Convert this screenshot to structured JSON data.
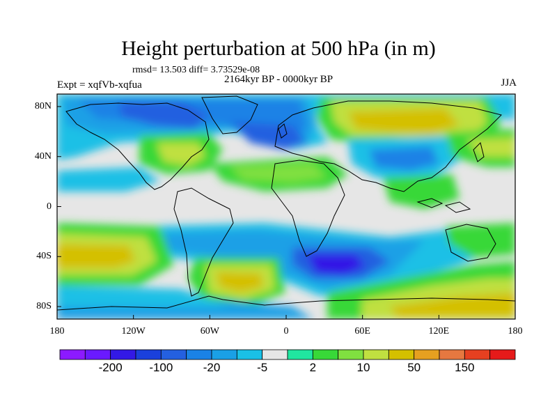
{
  "title": "Height perturbation at 500 hPa (in m)",
  "stats_line": "rmsd= 13.503 diff= 3.73529e-08",
  "experiment": "Expt = xqfVb-xqfua",
  "period": "2164kyr BP - 0000kyr BP",
  "season": "JJA",
  "map": {
    "projection": "cylindrical equidistant",
    "lon_range": [
      -180,
      180
    ],
    "lat_range": [
      -90,
      90
    ],
    "lat_ticks": [
      {
        "value": 80,
        "label": "80N"
      },
      {
        "value": 40,
        "label": "40N"
      },
      {
        "value": 0,
        "label": "0"
      },
      {
        "value": -40,
        "label": "40S"
      },
      {
        "value": -80,
        "label": "80S"
      }
    ],
    "lon_ticks": [
      {
        "value": -180,
        "label": "180"
      },
      {
        "value": -120,
        "label": "120W"
      },
      {
        "value": -60,
        "label": "60W"
      },
      {
        "value": 0,
        "label": "0"
      },
      {
        "value": 60,
        "label": "60E"
      },
      {
        "value": 120,
        "label": "120E"
      },
      {
        "value": 180,
        "label": "180"
      }
    ],
    "background_color": "#e6e6e6",
    "coastline_color": "#000000"
  },
  "colorbar": {
    "colors": [
      "#8c1aff",
      "#6a1aff",
      "#3319e6",
      "#1a40dc",
      "#2460e0",
      "#1a82e6",
      "#1aa0e6",
      "#1ac0e6",
      "#e6e6e6",
      "#20e6a0",
      "#38d838",
      "#80e040",
      "#c0e040",
      "#d4c000",
      "#e6a020",
      "#e67840",
      "#e64020",
      "#e61a1a"
    ],
    "labels": [
      {
        "after_index": 1,
        "text": "-200"
      },
      {
        "after_index": 3,
        "text": "-100"
      },
      {
        "after_index": 5,
        "text": "-20"
      },
      {
        "after_index": 7,
        "text": "-5"
      },
      {
        "after_index": 9,
        "text": "2"
      },
      {
        "after_index": 11,
        "text": "10"
      },
      {
        "after_index": 13,
        "text": "50"
      },
      {
        "after_index": 15,
        "text": "150"
      }
    ]
  }
}
